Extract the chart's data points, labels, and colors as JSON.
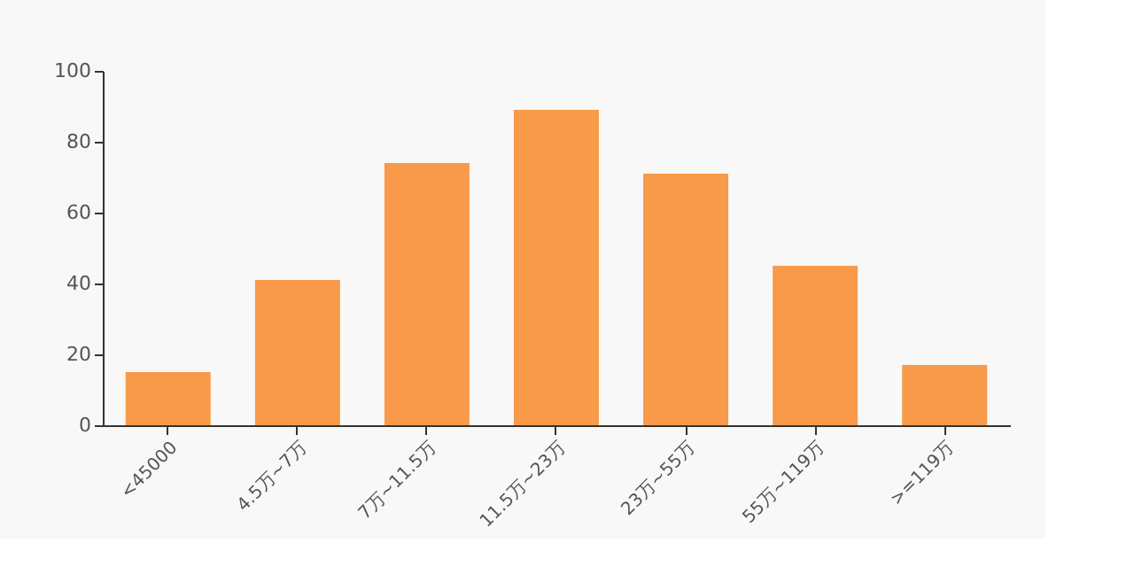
{
  "chart_data": {
    "type": "bar",
    "categories": [
      "<45000",
      "4.5万~7万",
      "7万~11.5万",
      "11.5万~23万",
      "23万~55万",
      "55万~119万",
      ">=119万"
    ],
    "values": [
      15,
      41,
      74,
      89,
      71,
      45,
      17
    ],
    "color": "#f89a4a",
    "ylim": [
      0,
      100
    ],
    "yticks": [
      0,
      20,
      40,
      60,
      80,
      100
    ],
    "grid": false
  }
}
